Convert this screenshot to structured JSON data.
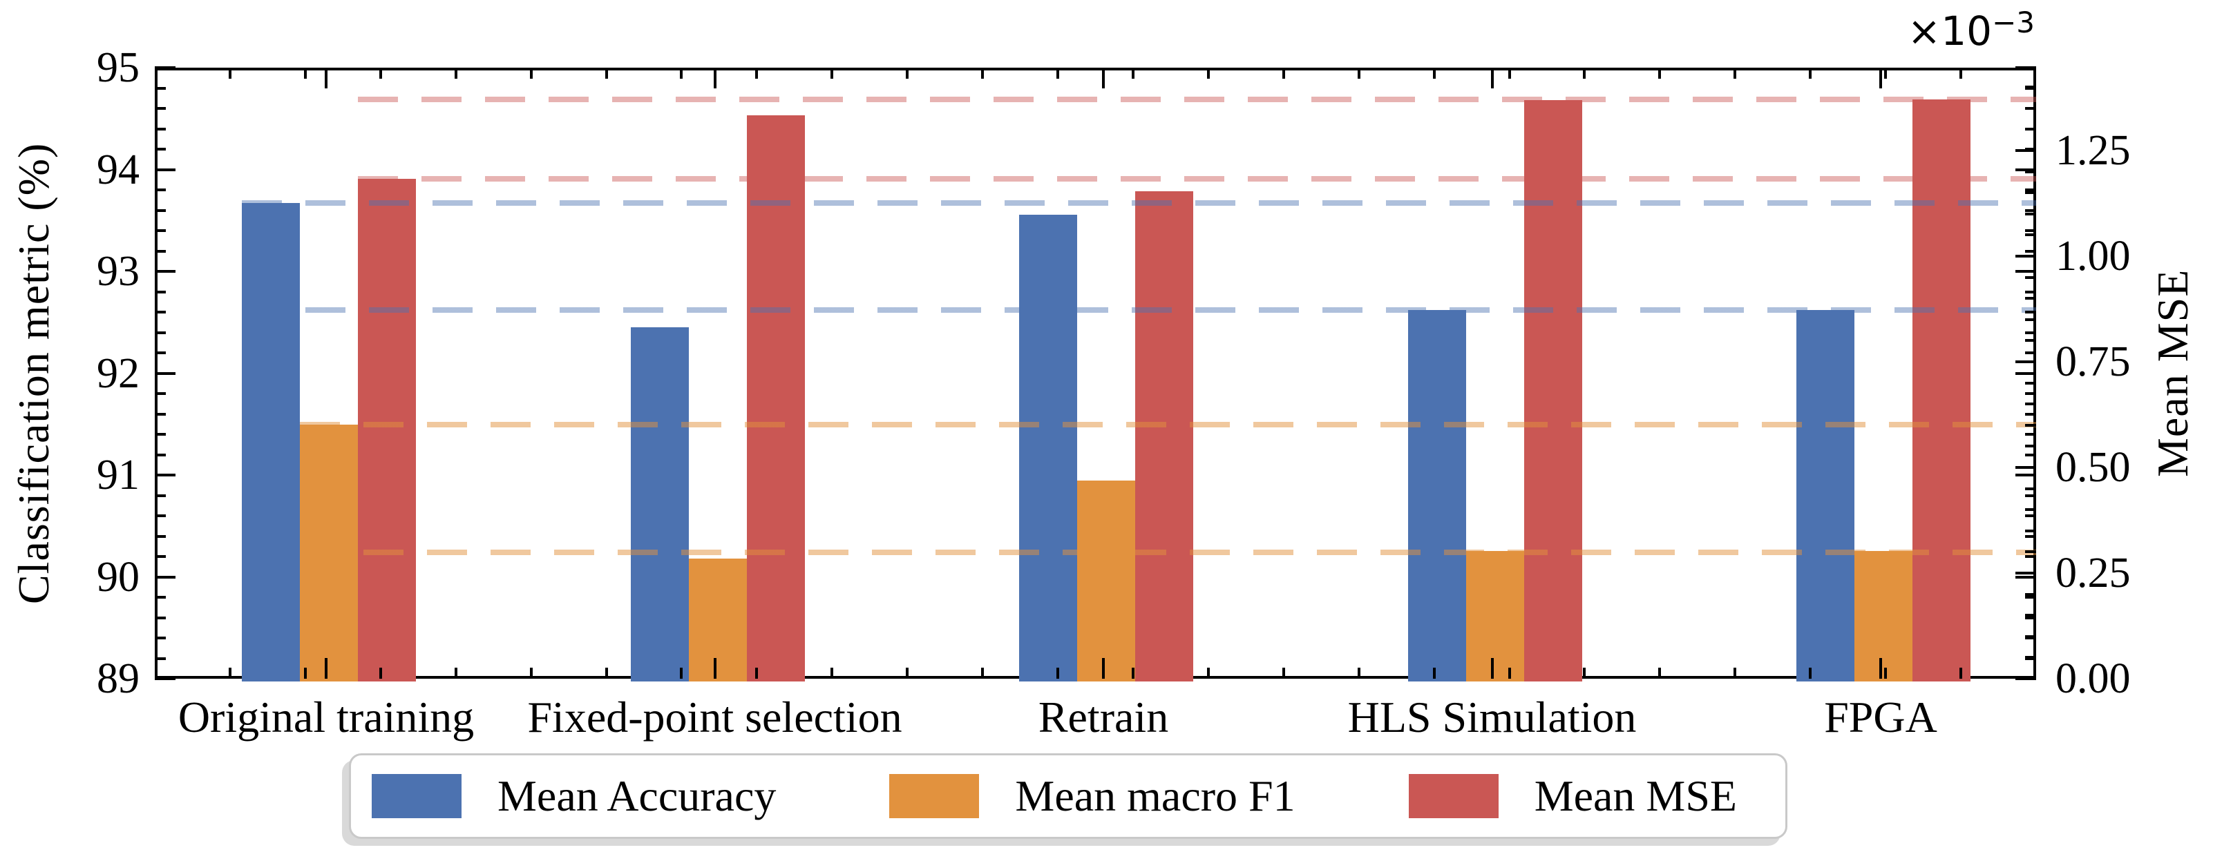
{
  "chart_data": {
    "type": "bar",
    "title": "",
    "categories": [
      "Original training",
      "Fixed-point selection",
      "Retrain",
      "HLS Simulation",
      "FPGA"
    ],
    "series": [
      {
        "name": "Mean Accuracy",
        "axis": "left",
        "color": "#4C72B0",
        "dash_color": "rgba(76,114,176,0.45)",
        "values": [
          93.7,
          92.48,
          93.58,
          92.65,
          92.65
        ]
      },
      {
        "name": "Mean macro F1",
        "axis": "left",
        "color": "#E2923E",
        "dash_color": "rgba(226,146,62,0.50)",
        "values": [
          91.52,
          90.21,
          90.97,
          90.28,
          90.28
        ]
      },
      {
        "name": "Mean MSE",
        "axis": "right",
        "color": "#CA5754",
        "dash_color": "rgba(202,87,84,0.45)",
        "unit_scale": "1e-3",
        "values": [
          1.19,
          1.34,
          1.16,
          1.375,
          1.378
        ]
      }
    ],
    "reference_lines": [
      {
        "series": 0,
        "value": 93.7
      },
      {
        "series": 0,
        "value": 92.65
      },
      {
        "series": 1,
        "value": 91.52
      },
      {
        "series": 1,
        "value": 90.27
      },
      {
        "series": 2,
        "value": 1.378
      },
      {
        "series": 2,
        "value": 1.19
      }
    ],
    "left_axis": {
      "label": "Classification metric (%)",
      "min": 89,
      "max": 95,
      "major_ticks": [
        89,
        90,
        91,
        92,
        93,
        94,
        95
      ],
      "minor_step": 0.2
    },
    "right_axis": {
      "label": "Mean MSE",
      "min": 0,
      "max": 1.446,
      "major_ticks": [
        0,
        0.25,
        0.5,
        0.75,
        1.0,
        1.25
      ],
      "minor_step": 0.05,
      "offset_base": "×10",
      "offset_exponent": "−3"
    },
    "legend": {
      "position": "bottom-center"
    },
    "grid": false
  }
}
